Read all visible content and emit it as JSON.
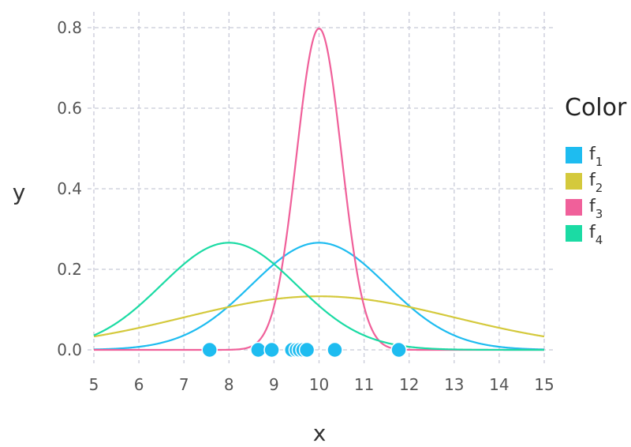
{
  "chart_data": {
    "type": "line",
    "xlabel": "x",
    "ylabel": "y",
    "xlim": [
      5,
      15
    ],
    "ylim": [
      0,
      0.8
    ],
    "x_ticks": [
      "5",
      "6",
      "7",
      "8",
      "9",
      "10",
      "11",
      "12",
      "13",
      "14",
      "15"
    ],
    "y_ticks": [
      "0.0",
      "0.2",
      "0.4",
      "0.6",
      "0.8"
    ],
    "grid": true,
    "legend": {
      "title": "Color",
      "placement": "right",
      "entries": [
        {
          "base": "f",
          "sub": "1",
          "color": "#1EBCF0"
        },
        {
          "base": "f",
          "sub": "2",
          "color": "#D4C93C"
        },
        {
          "base": "f",
          "sub": "3",
          "color": "#F0609A"
        },
        {
          "base": "f",
          "sub": "4",
          "color": "#1BDBA4"
        }
      ]
    },
    "series": [
      {
        "name": "f1",
        "distribution": "normal",
        "mean": 10,
        "sd": 1.5,
        "color": "#1EBCF0"
      },
      {
        "name": "f2",
        "distribution": "normal",
        "mean": 10,
        "sd": 3,
        "color": "#D4C93C"
      },
      {
        "name": "f3",
        "distribution": "normal",
        "mean": 10,
        "sd": 0.5,
        "color": "#F0609A"
      },
      {
        "name": "f4",
        "distribution": "normal",
        "mean": 8,
        "sd": 1.5,
        "color": "#1BDBA4"
      }
    ],
    "points": {
      "color": "#1EBCF0",
      "y": 0,
      "x": [
        7.57,
        8.65,
        8.95,
        9.4,
        9.5,
        9.57,
        9.65,
        9.73,
        10.35,
        11.77
      ]
    }
  }
}
